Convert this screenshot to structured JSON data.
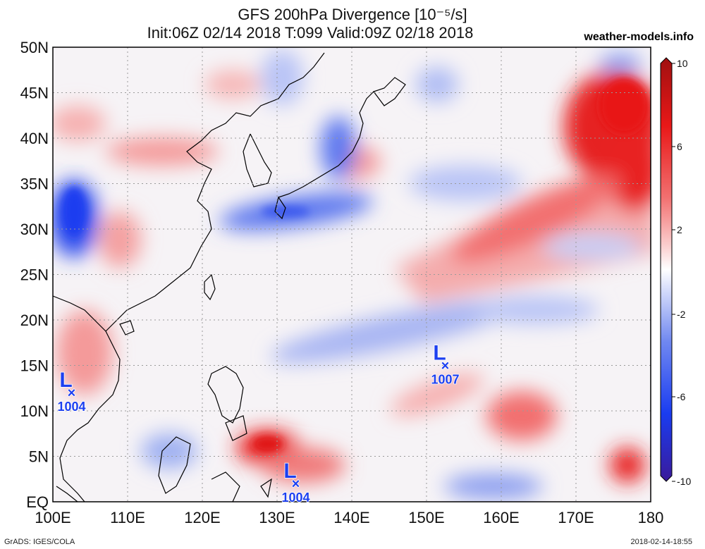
{
  "title": {
    "line1": "GFS 200hPa Divergence [10⁻⁵/s]",
    "line2": "Init:06Z 02/14 2018 T:099 Valid:09Z 02/18 2018"
  },
  "site": "weather-models.info",
  "footer": {
    "left": "GrADS: IGES/COLA",
    "right": "2018-02-14-18:55"
  },
  "map": {
    "lon_range": [
      100,
      180
    ],
    "lat_range": [
      0,
      50
    ],
    "lat_labels": [
      "EQ",
      "5N",
      "10N",
      "15N",
      "20N",
      "25N",
      "30N",
      "35N",
      "40N",
      "45N",
      "50N"
    ],
    "lon_labels": [
      "100E",
      "110E",
      "120E",
      "130E",
      "140E",
      "150E",
      "160E",
      "170E",
      "180"
    ]
  },
  "colorbar": {
    "labels": [
      "10",
      "6",
      "2",
      "-2",
      "-6",
      "-10"
    ],
    "colors": [
      "#a01010",
      "#e81818",
      "#f06a6a",
      "#f7b9b9",
      "#ffffff",
      "#b9c4f7",
      "#6f86f0",
      "#1a3cf0",
      "#3a22a8"
    ]
  },
  "lows": [
    {
      "lon": 102.5,
      "lat": 12,
      "letter": "L",
      "pressure": "1004"
    },
    {
      "lon": 152.5,
      "lat": 15,
      "letter": "L",
      "pressure": "1007"
    },
    {
      "lon": 132.5,
      "lat": 2,
      "letter": "L",
      "pressure": "1004"
    }
  ],
  "legend_colors": {
    "divergence_positive": "#e81818",
    "divergence_negative": "#1a3cf0",
    "neutral": "#ffffff"
  }
}
